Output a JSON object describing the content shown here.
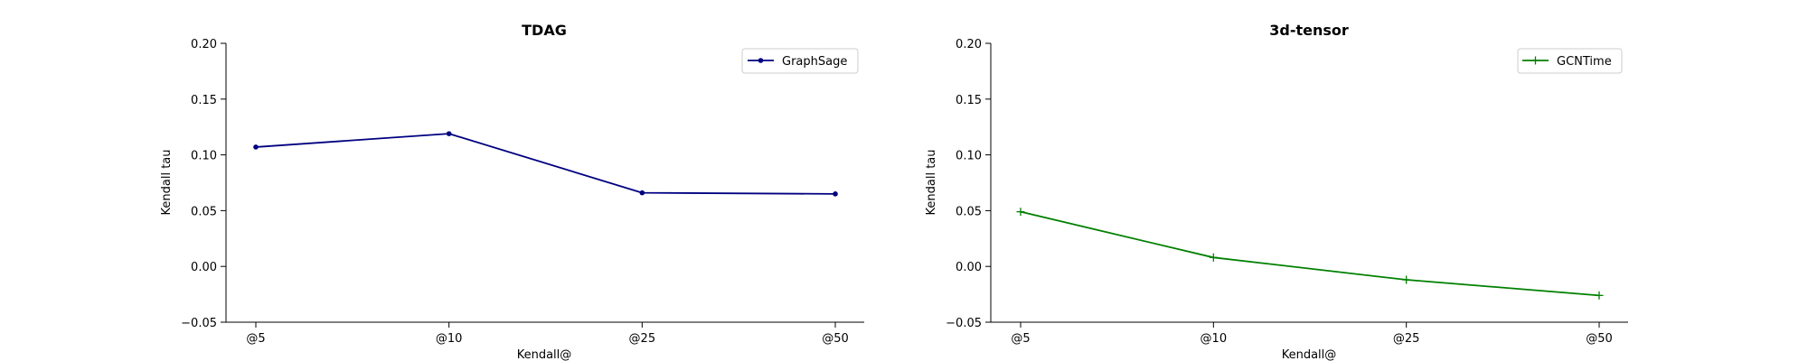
{
  "chart_data": [
    {
      "type": "line",
      "title": "TDAG",
      "xlabel": "Kendall@",
      "ylabel": "Kendall tau",
      "categories": [
        "@5",
        "@10",
        "@25",
        "@50"
      ],
      "ylim": [
        -0.05,
        0.2
      ],
      "yticks": [
        "−0.05",
        "0.00",
        "0.05",
        "0.10",
        "0.15",
        "0.20"
      ],
      "yticks_values": [
        -0.05,
        0.0,
        0.05,
        0.1,
        0.15,
        0.2
      ],
      "grid": false,
      "legend_position": "top-right",
      "series": [
        {
          "name": "GraphSage",
          "values": [
            0.107,
            0.119,
            0.066,
            0.065
          ],
          "color": "#000080",
          "marker": "dot"
        }
      ]
    },
    {
      "type": "line",
      "title": "3d-tensor",
      "xlabel": "Kendall@",
      "ylabel": "Kendall tau",
      "categories": [
        "@5",
        "@10",
        "@25",
        "@50"
      ],
      "ylim": [
        -0.05,
        0.2
      ],
      "yticks": [
        "−0.05",
        "0.00",
        "0.05",
        "0.10",
        "0.15",
        "0.20"
      ],
      "yticks_values": [
        -0.05,
        0.0,
        0.05,
        0.1,
        0.15,
        0.2
      ],
      "grid": false,
      "legend_position": "top-right",
      "series": [
        {
          "name": "GCNTime",
          "values": [
            0.049,
            0.008,
            -0.012,
            -0.026
          ],
          "color": "#008000",
          "marker": "plus"
        }
      ]
    }
  ]
}
